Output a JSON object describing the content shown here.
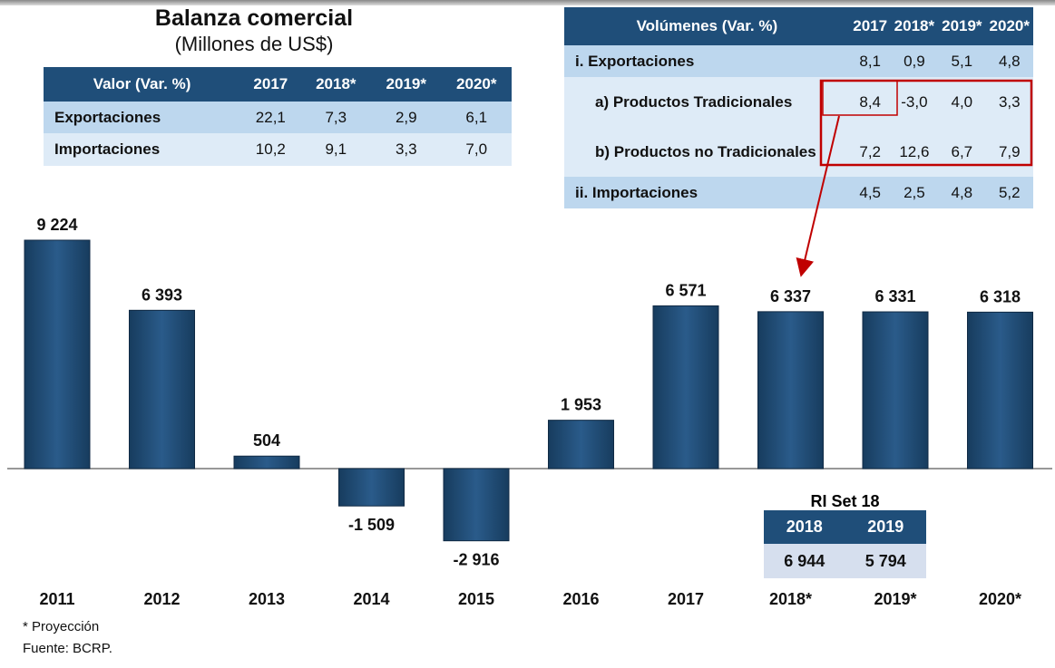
{
  "title": "Balanza comercial",
  "subtitle": "(Millones de US$)",
  "valor_table": {
    "header": [
      "Valor  (Var. %)",
      "2017",
      "2018*",
      "2019*",
      "2020*"
    ],
    "rows": [
      [
        "Exportaciones",
        "22,1",
        "7,3",
        "2,9",
        "6,1"
      ],
      [
        "Importaciones",
        "10,2",
        "9,1",
        "3,3",
        "7,0"
      ]
    ]
  },
  "volumen_table": {
    "header": [
      "Volúmenes  (Var. %)",
      "2017",
      "2018*",
      "2019*",
      "2020*"
    ],
    "rows": [
      [
        "i.  Exportaciones",
        "8,1",
        "0,9",
        "5,1",
        "4,8"
      ],
      [
        "a) Productos Tradicionales",
        "8,4",
        "-3,0",
        "4,0",
        "3,3"
      ],
      [
        "b) Productos no Tradicionales",
        "7,2",
        "12,6",
        "6,7",
        "7,9"
      ],
      [
        "ii.  Importaciones",
        "4,5",
        "2,5",
        "4,8",
        "5,2"
      ]
    ]
  },
  "ri_table": {
    "title": "RI Set 18",
    "header": [
      "2018",
      "2019"
    ],
    "values": [
      "6 944",
      "5 794"
    ]
  },
  "footnotes": [
    "* Proyección",
    "Fuente: BCRP."
  ],
  "colors": {
    "bar": "#1f4e79",
    "highlight": "#c00000"
  },
  "chart_data": {
    "type": "bar",
    "categories": [
      "2011",
      "2012",
      "2013",
      "2014",
      "2015",
      "2016",
      "2017",
      "2018*",
      "2019*",
      "2020*"
    ],
    "values": [
      9224,
      6393,
      504,
      -1509,
      -2916,
      1953,
      6571,
      6337,
      6331,
      6318
    ],
    "labels": [
      "9 224",
      "6 393",
      "504",
      "-1 509",
      "-2 916",
      "1 953",
      "6 571",
      "6 337",
      "6 331",
      "6 318"
    ],
    "xlabel": "",
    "ylabel": "",
    "grid": false
  }
}
